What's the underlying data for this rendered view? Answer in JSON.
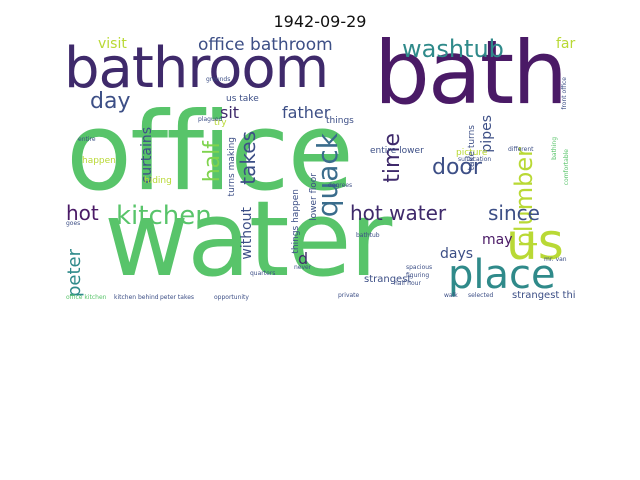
{
  "title": "1942-09-29",
  "palette": {
    "green": "#58c46a",
    "yellow": "#b9d935",
    "purple": "#3f2a6b",
    "darkpurple": "#4a1a66",
    "slate": "#3d4f86",
    "teal": "#2f8a8a",
    "blue": "#3a6c8c",
    "lime": "#7fd34e"
  },
  "words": [
    {
      "t": "office"
    },
    {
      "t": "water"
    },
    {
      "t": "bath"
    },
    {
      "t": "bathroom"
    },
    {
      "t": "us"
    },
    {
      "t": "place"
    },
    {
      "t": "quack"
    },
    {
      "t": "kitchen"
    },
    {
      "t": "washtub"
    },
    {
      "t": "office bathroom"
    },
    {
      "t": "hot water"
    },
    {
      "t": "plumber"
    },
    {
      "t": "door"
    },
    {
      "t": "day"
    },
    {
      "t": "time"
    },
    {
      "t": "half"
    },
    {
      "t": "takes"
    },
    {
      "t": "since"
    },
    {
      "t": "hot"
    },
    {
      "t": "peter"
    },
    {
      "t": "far"
    },
    {
      "t": "visit"
    },
    {
      "t": "sit"
    },
    {
      "t": "father"
    },
    {
      "t": "curtains"
    },
    {
      "t": "pipes"
    },
    {
      "t": "without"
    },
    {
      "t": "days"
    },
    {
      "t": "may"
    },
    {
      "t": "d"
    },
    {
      "t": "strangest"
    },
    {
      "t": "strangest things"
    },
    {
      "t": "entire lower"
    },
    {
      "t": "us take"
    },
    {
      "t": "things happen"
    },
    {
      "t": "lower floor"
    },
    {
      "t": "turns making"
    },
    {
      "t": "happen"
    },
    {
      "t": "hiding"
    },
    {
      "t": "picture"
    },
    {
      "t": "take turns"
    },
    {
      "t": "things"
    },
    {
      "t": "try"
    },
    {
      "t": "suffocation"
    },
    {
      "t": "different"
    },
    {
      "t": "comfortable"
    },
    {
      "t": "bathing"
    },
    {
      "t": "front office"
    },
    {
      "t": "office kitchen"
    },
    {
      "t": "kitchen behind"
    },
    {
      "t": "peter takes"
    },
    {
      "t": "opportunity"
    },
    {
      "t": "private"
    },
    {
      "t": "half hour"
    },
    {
      "t": "selected"
    },
    {
      "t": "grounds"
    },
    {
      "t": "degrees"
    },
    {
      "t": "plagued"
    },
    {
      "t": "spacious"
    },
    {
      "t": "bathtub"
    },
    {
      "t": "walk"
    },
    {
      "t": "quarters"
    },
    {
      "t": "never"
    },
    {
      "t": "goes"
    },
    {
      "t": "mr. van"
    },
    {
      "t": "entire"
    },
    {
      "t": "figuring"
    }
  ]
}
